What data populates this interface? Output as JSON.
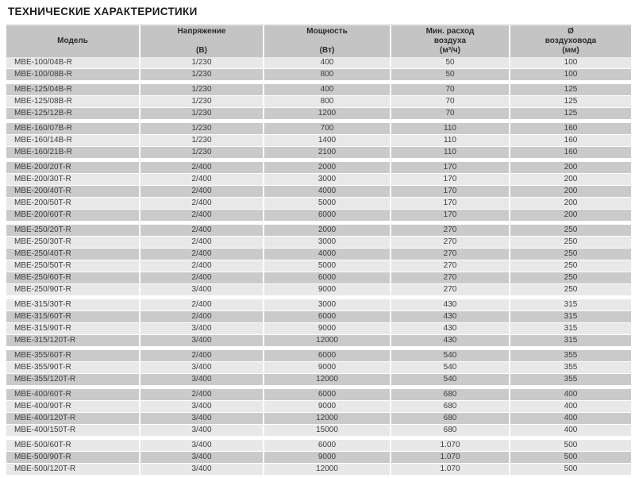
{
  "title": "ТЕХНИЧЕСКИЕ ХАРАКТЕРИСТИКИ",
  "colors": {
    "header_bg": "#c4c4c4",
    "row_light": "#e8e8e8",
    "row_dark": "#cacaca",
    "cell_text": "#3c3c3c",
    "title_text": "#1d1d1b",
    "separator": "#ffffff"
  },
  "table": {
    "columns": [
      {
        "id": "model",
        "line1": "",
        "line2": "Модель",
        "line3": ""
      },
      {
        "id": "voltage",
        "line1": "Напряжение",
        "line2": "",
        "line3": "(В)"
      },
      {
        "id": "power",
        "line1": "Мощность",
        "line2": "",
        "line3": "(Вт)"
      },
      {
        "id": "airflow",
        "line1": "Мин. расход",
        "line2": "воздуха",
        "line3": "(м³/ч)"
      },
      {
        "id": "duct",
        "line1": "Ø",
        "line2": "воздуховода",
        "line3": "(мм)"
      }
    ],
    "groups": [
      {
        "name": "MBE-100",
        "rows": [
          [
            "MBE-100/04B-R",
            "1/230",
            "400",
            "50",
            "100"
          ],
          [
            "MBE-100/08B-R",
            "1/230",
            "800",
            "50",
            "100"
          ]
        ]
      },
      {
        "name": "MBE-125",
        "rows": [
          [
            "MBE-125/04B-R",
            "1/230",
            "400",
            "70",
            "125"
          ],
          [
            "MBE-125/08B-R",
            "1/230",
            "800",
            "70",
            "125"
          ],
          [
            "MBE-125/12B-R",
            "1/230",
            "1200",
            "70",
            "125"
          ]
        ]
      },
      {
        "name": "MBE-160",
        "rows": [
          [
            "MBE-160/07B-R",
            "1/230",
            "700",
            "110",
            "160"
          ],
          [
            "MBE-160/14B-R",
            "1/230",
            "1400",
            "110",
            "160"
          ],
          [
            "MBE-160/21B-R",
            "1/230",
            "2100",
            "110",
            "160"
          ]
        ]
      },
      {
        "name": "MBE-200",
        "rows": [
          [
            "MBE-200/20T-R",
            "2/400",
            "2000",
            "170",
            "200"
          ],
          [
            "MBE-200/30T-R",
            "2/400",
            "3000",
            "170",
            "200"
          ],
          [
            "MBE-200/40T-R",
            "2/400",
            "4000",
            "170",
            "200"
          ],
          [
            "MBE-200/50T-R",
            "2/400",
            "5000",
            "170",
            "200"
          ],
          [
            "MBE-200/60T-R",
            "2/400",
            "6000",
            "170",
            "200"
          ]
        ]
      },
      {
        "name": "MBE-250",
        "rows": [
          [
            "MBE-250/20T-R",
            "2/400",
            "2000",
            "270",
            "250"
          ],
          [
            "MBE-250/30T-R",
            "2/400",
            "3000",
            "270",
            "250"
          ],
          [
            "MBE-250/40T-R",
            "2/400",
            "4000",
            "270",
            "250"
          ],
          [
            "MBE-250/50T-R",
            "2/400",
            "5000",
            "270",
            "250"
          ],
          [
            "MBE-250/60T-R",
            "2/400",
            "6000",
            "270",
            "250"
          ],
          [
            "MBE-250/90T-R",
            "3/400",
            "9000",
            "270",
            "250"
          ]
        ]
      },
      {
        "name": "MBE-315",
        "rows": [
          [
            "MBE-315/30T-R",
            "2/400",
            "3000",
            "430",
            "315"
          ],
          [
            "MBE-315/60T-R",
            "2/400",
            "6000",
            "430",
            "315"
          ],
          [
            "MBE-315/90T-R",
            "3/400",
            "9000",
            "430",
            "315"
          ],
          [
            "MBE-315/120T-R",
            "3/400",
            "12000",
            "430",
            "315"
          ]
        ]
      },
      {
        "name": "MBE-355",
        "rows": [
          [
            "MBE-355/60T-R",
            "2/400",
            "6000",
            "540",
            "355"
          ],
          [
            "MBE-355/90T-R",
            "3/400",
            "9000",
            "540",
            "355"
          ],
          [
            "MBE-355/120T-R",
            "3/400",
            "12000",
            "540",
            "355"
          ]
        ]
      },
      {
        "name": "MBE-400",
        "rows": [
          [
            "MBE-400/60T-R",
            "2/400",
            "6000",
            "680",
            "400"
          ],
          [
            "MBE-400/90T-R",
            "3/400",
            "9000",
            "680",
            "400"
          ],
          [
            "MBE-400/120T-R",
            "3/400",
            "12000",
            "680",
            "400"
          ],
          [
            "MBE-400/150T-R",
            "3/400",
            "15000",
            "680",
            "400"
          ]
        ]
      },
      {
        "name": "MBE-500",
        "rows": [
          [
            "MBE-500/60T-R",
            "3/400",
            "6000",
            "1.070",
            "500"
          ],
          [
            "MBE-500/90T-R",
            "3/400",
            "9000",
            "1.070",
            "500"
          ],
          [
            "MBE-500/120T-R",
            "3/400",
            "12000",
            "1.070",
            "500"
          ]
        ]
      }
    ]
  }
}
